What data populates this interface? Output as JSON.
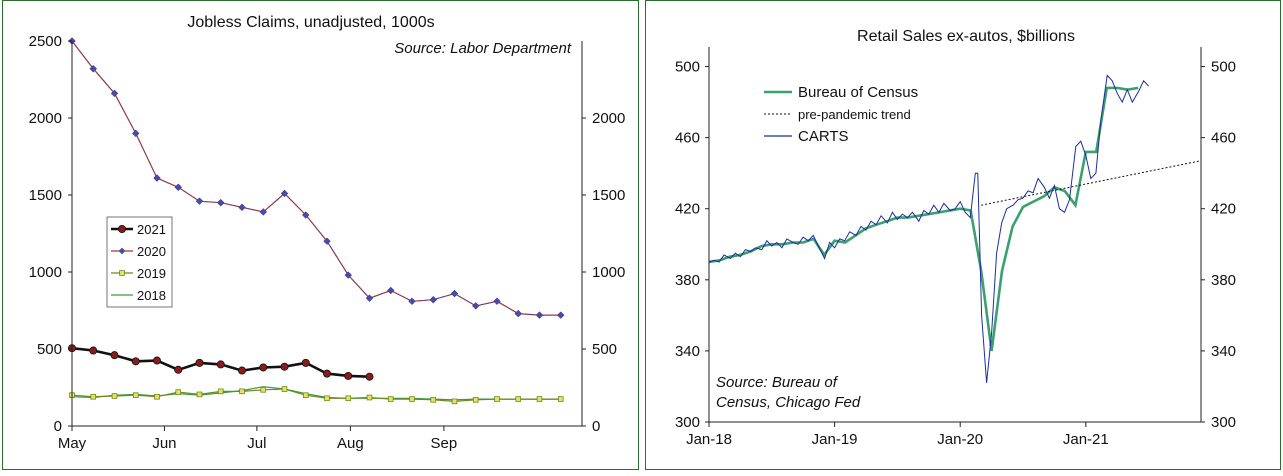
{
  "chart_data": [
    {
      "type": "line",
      "title": "Jobless Claims, unadjusted, 1000s",
      "source": "Source: Labor Department",
      "xlabel": "",
      "ylabel": "",
      "x_ticks": [
        "May",
        "Jun",
        "Jul",
        "Aug",
        "Sep"
      ],
      "ylim": [
        0,
        2500
      ],
      "y_ticks_left": [
        "2500",
        "2000",
        "1500",
        "1000",
        "500",
        "0"
      ],
      "y_ticks_right": [
        "2000",
        "1500",
        "1000",
        "500",
        "0"
      ],
      "legend_position": "left",
      "series": [
        {
          "name": "2021",
          "color": "#8b1a1a",
          "marker": "circle",
          "x": [
            0,
            1,
            2,
            3,
            4,
            5,
            6,
            7,
            8,
            9,
            10,
            11,
            12,
            13,
            14
          ],
          "values": [
            505,
            490,
            460,
            420,
            425,
            365,
            410,
            400,
            360,
            380,
            385,
            410,
            340,
            325,
            320
          ]
        },
        {
          "name": "2020",
          "color": "#4a4aa8",
          "marker": "diamond",
          "x": [
            0,
            1,
            2,
            3,
            4,
            5,
            6,
            7,
            8,
            9,
            10,
            11,
            12,
            13,
            14,
            15,
            16,
            17,
            18,
            19,
            20,
            21,
            22,
            23
          ],
          "values": [
            2500,
            2320,
            2160,
            1900,
            1610,
            1550,
            1460,
            1450,
            1420,
            1390,
            1510,
            1370,
            1200,
            980,
            830,
            880,
            810,
            820,
            860,
            780,
            810,
            730,
            720,
            720
          ]
        },
        {
          "name": "2019",
          "color": "#6a8a20",
          "marker": "square",
          "x": [
            0,
            1,
            2,
            3,
            4,
            5,
            6,
            7,
            8,
            9,
            10,
            11,
            12,
            13,
            14,
            15,
            16,
            17,
            18,
            19,
            20,
            21,
            22,
            23
          ],
          "values": [
            200,
            190,
            195,
            200,
            190,
            220,
            205,
            225,
            225,
            235,
            240,
            200,
            180,
            180,
            185,
            175,
            175,
            170,
            160,
            170,
            175,
            175,
            175,
            175
          ]
        },
        {
          "name": "2018",
          "color": "#3c9a3c",
          "marker": "none",
          "x": [
            0,
            1,
            2,
            3,
            4,
            5,
            6,
            7,
            8,
            9,
            10,
            11,
            12,
            13,
            14,
            15,
            16,
            17,
            18,
            19,
            20,
            21,
            22,
            23
          ],
          "values": [
            190,
            185,
            200,
            205,
            195,
            210,
            200,
            215,
            230,
            255,
            240,
            210,
            185,
            180,
            180,
            180,
            180,
            175,
            170,
            175,
            175,
            175,
            175,
            175
          ]
        }
      ]
    },
    {
      "type": "line",
      "title": "Retail Sales ex-autos, $billions",
      "source_line1": "Source: Bureau of",
      "source_line2": "Census, Chicago Fed",
      "xlabel": "",
      "ylabel": "",
      "x_ticks": [
        "Jan-18",
        "Jan-19",
        "Jan-20",
        "Jan-21"
      ],
      "ylim": [
        300,
        510
      ],
      "y_ticks_left": [
        "500",
        "460",
        "420",
        "380",
        "340",
        "300"
      ],
      "y_ticks_right": [
        "500",
        "460",
        "420",
        "380",
        "340",
        "300"
      ],
      "legend_position": "top-left",
      "series": [
        {
          "name": "Bureau of Census",
          "color": "#3aa070",
          "style": "solid",
          "x": [
            2018.0,
            2018.083,
            2018.167,
            2018.25,
            2018.333,
            2018.417,
            2018.5,
            2018.583,
            2018.667,
            2018.75,
            2018.833,
            2018.917,
            2019.0,
            2019.083,
            2019.167,
            2019.25,
            2019.333,
            2019.417,
            2019.5,
            2019.583,
            2019.667,
            2019.75,
            2019.833,
            2019.917,
            2020.0,
            2020.083,
            2020.167,
            2020.25,
            2020.333,
            2020.417,
            2020.5,
            2020.583,
            2020.667,
            2020.75,
            2020.833,
            2020.917,
            2021.0,
            2021.083,
            2021.167,
            2021.25,
            2021.333,
            2021.417
          ],
          "values": [
            390,
            391,
            393,
            394,
            396,
            399,
            400,
            400,
            401,
            401,
            403,
            394,
            402,
            401,
            405,
            409,
            411,
            413,
            415,
            415,
            416,
            417,
            418,
            419,
            420,
            419,
            385,
            340,
            385,
            410,
            421,
            424,
            427,
            432,
            430,
            422,
            452,
            452,
            488,
            488,
            487,
            488
          ]
        },
        {
          "name": "pre-pandemic trend",
          "color": "#111111",
          "style": "dotted",
          "x": [
            2020.167,
            2021.917
          ],
          "values": [
            422,
            447
          ]
        },
        {
          "name": "CARTS",
          "color": "#1e2e9e",
          "style": "solid",
          "x": [
            2018.0,
            2018.04,
            2018.08,
            2018.12,
            2018.17,
            2018.21,
            2018.25,
            2018.29,
            2018.33,
            2018.37,
            2018.42,
            2018.46,
            2018.5,
            2018.54,
            2018.58,
            2018.62,
            2018.67,
            2018.71,
            2018.75,
            2018.79,
            2018.83,
            2018.87,
            2018.92,
            2018.96,
            2019.0,
            2019.04,
            2019.08,
            2019.12,
            2019.17,
            2019.21,
            2019.25,
            2019.29,
            2019.33,
            2019.37,
            2019.42,
            2019.46,
            2019.5,
            2019.54,
            2019.58,
            2019.62,
            2019.67,
            2019.71,
            2019.75,
            2019.79,
            2019.83,
            2019.87,
            2019.92,
            2019.96,
            2020.0,
            2020.04,
            2020.08,
            2020.12,
            2020.14,
            2020.17,
            2020.21,
            2020.25,
            2020.29,
            2020.33,
            2020.37,
            2020.42,
            2020.46,
            2020.5,
            2020.54,
            2020.58,
            2020.62,
            2020.67,
            2020.71,
            2020.75,
            2020.79,
            2020.83,
            2020.87,
            2020.92,
            2020.96,
            2021.0,
            2021.04,
            2021.08,
            2021.12,
            2021.17,
            2021.21,
            2021.25,
            2021.29,
            2021.33,
            2021.37,
            2021.42,
            2021.46,
            2021.5
          ],
          "values": [
            390,
            391,
            390,
            394,
            392,
            395,
            393,
            397,
            396,
            398,
            397,
            402,
            399,
            401,
            398,
            403,
            401,
            400,
            404,
            402,
            405,
            399,
            392,
            401,
            398,
            403,
            402,
            407,
            405,
            410,
            408,
            413,
            411,
            416,
            412,
            418,
            414,
            417,
            415,
            418,
            413,
            419,
            417,
            422,
            418,
            423,
            419,
            420,
            424,
            418,
            415,
            440,
            440,
            360,
            322,
            350,
            395,
            412,
            420,
            422,
            425,
            426,
            430,
            429,
            437,
            432,
            426,
            433,
            420,
            418,
            425,
            455,
            458,
            450,
            437,
            440,
            470,
            495,
            492,
            485,
            480,
            487,
            480,
            486,
            492,
            489
          ]
        }
      ]
    }
  ]
}
